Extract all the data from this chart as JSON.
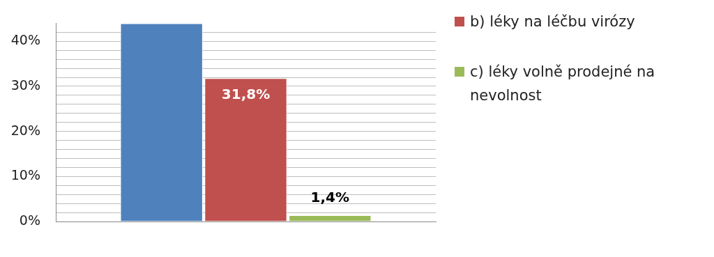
{
  "chart_data": {
    "type": "bar",
    "categories": [
      null
    ],
    "series": [
      {
        "color": "#4f81bd",
        "values": [
          44
        ],
        "value_labels": [
          null
        ]
      },
      {
        "name": "b) léky na léčbu virózy",
        "color": "#c0504d",
        "values": [
          31.8
        ],
        "value_labels": [
          "31,8%"
        ]
      },
      {
        "name": "c) léky volně prodejné na nevolnost",
        "color": "#9bbb59",
        "values": [
          1.4
        ],
        "value_labels": [
          "1,4%"
        ]
      }
    ],
    "ylim": [
      0,
      44
    ],
    "yticks": [
      {
        "value": 0,
        "label": "0%"
      },
      {
        "value": 2,
        "label": null
      },
      {
        "value": 4,
        "label": null
      },
      {
        "value": 6,
        "label": null
      },
      {
        "value": 8,
        "label": null
      },
      {
        "value": 10,
        "label": "10%"
      },
      {
        "value": 12,
        "label": null
      },
      {
        "value": 14,
        "label": null
      },
      {
        "value": 16,
        "label": null
      },
      {
        "value": 18,
        "label": null
      },
      {
        "value": 20,
        "label": "20%"
      },
      {
        "value": 22,
        "label": null
      },
      {
        "value": 24,
        "label": null
      },
      {
        "value": 26,
        "label": null
      },
      {
        "value": 28,
        "label": null
      },
      {
        "value": 30,
        "label": "30%"
      },
      {
        "value": 32,
        "label": null
      },
      {
        "value": 34,
        "label": null
      },
      {
        "value": 36,
        "label": null
      },
      {
        "value": 38,
        "label": null
      },
      {
        "value": 40,
        "label": "40%"
      },
      {
        "value": 42,
        "label": null
      }
    ],
    "grid": "y",
    "legend": "right"
  }
}
